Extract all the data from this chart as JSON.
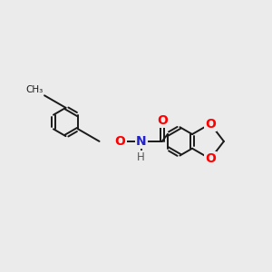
{
  "background_color": "#ebebeb",
  "bond_color": "#1a1a1a",
  "bond_width": 1.4,
  "atom_colors": {
    "O": "#ff0000",
    "N": "#2222cc",
    "H": "#555555",
    "C": "#1a1a1a"
  },
  "font_size_atom": 10,
  "font_size_h": 8.5,
  "dbo": 0.022
}
